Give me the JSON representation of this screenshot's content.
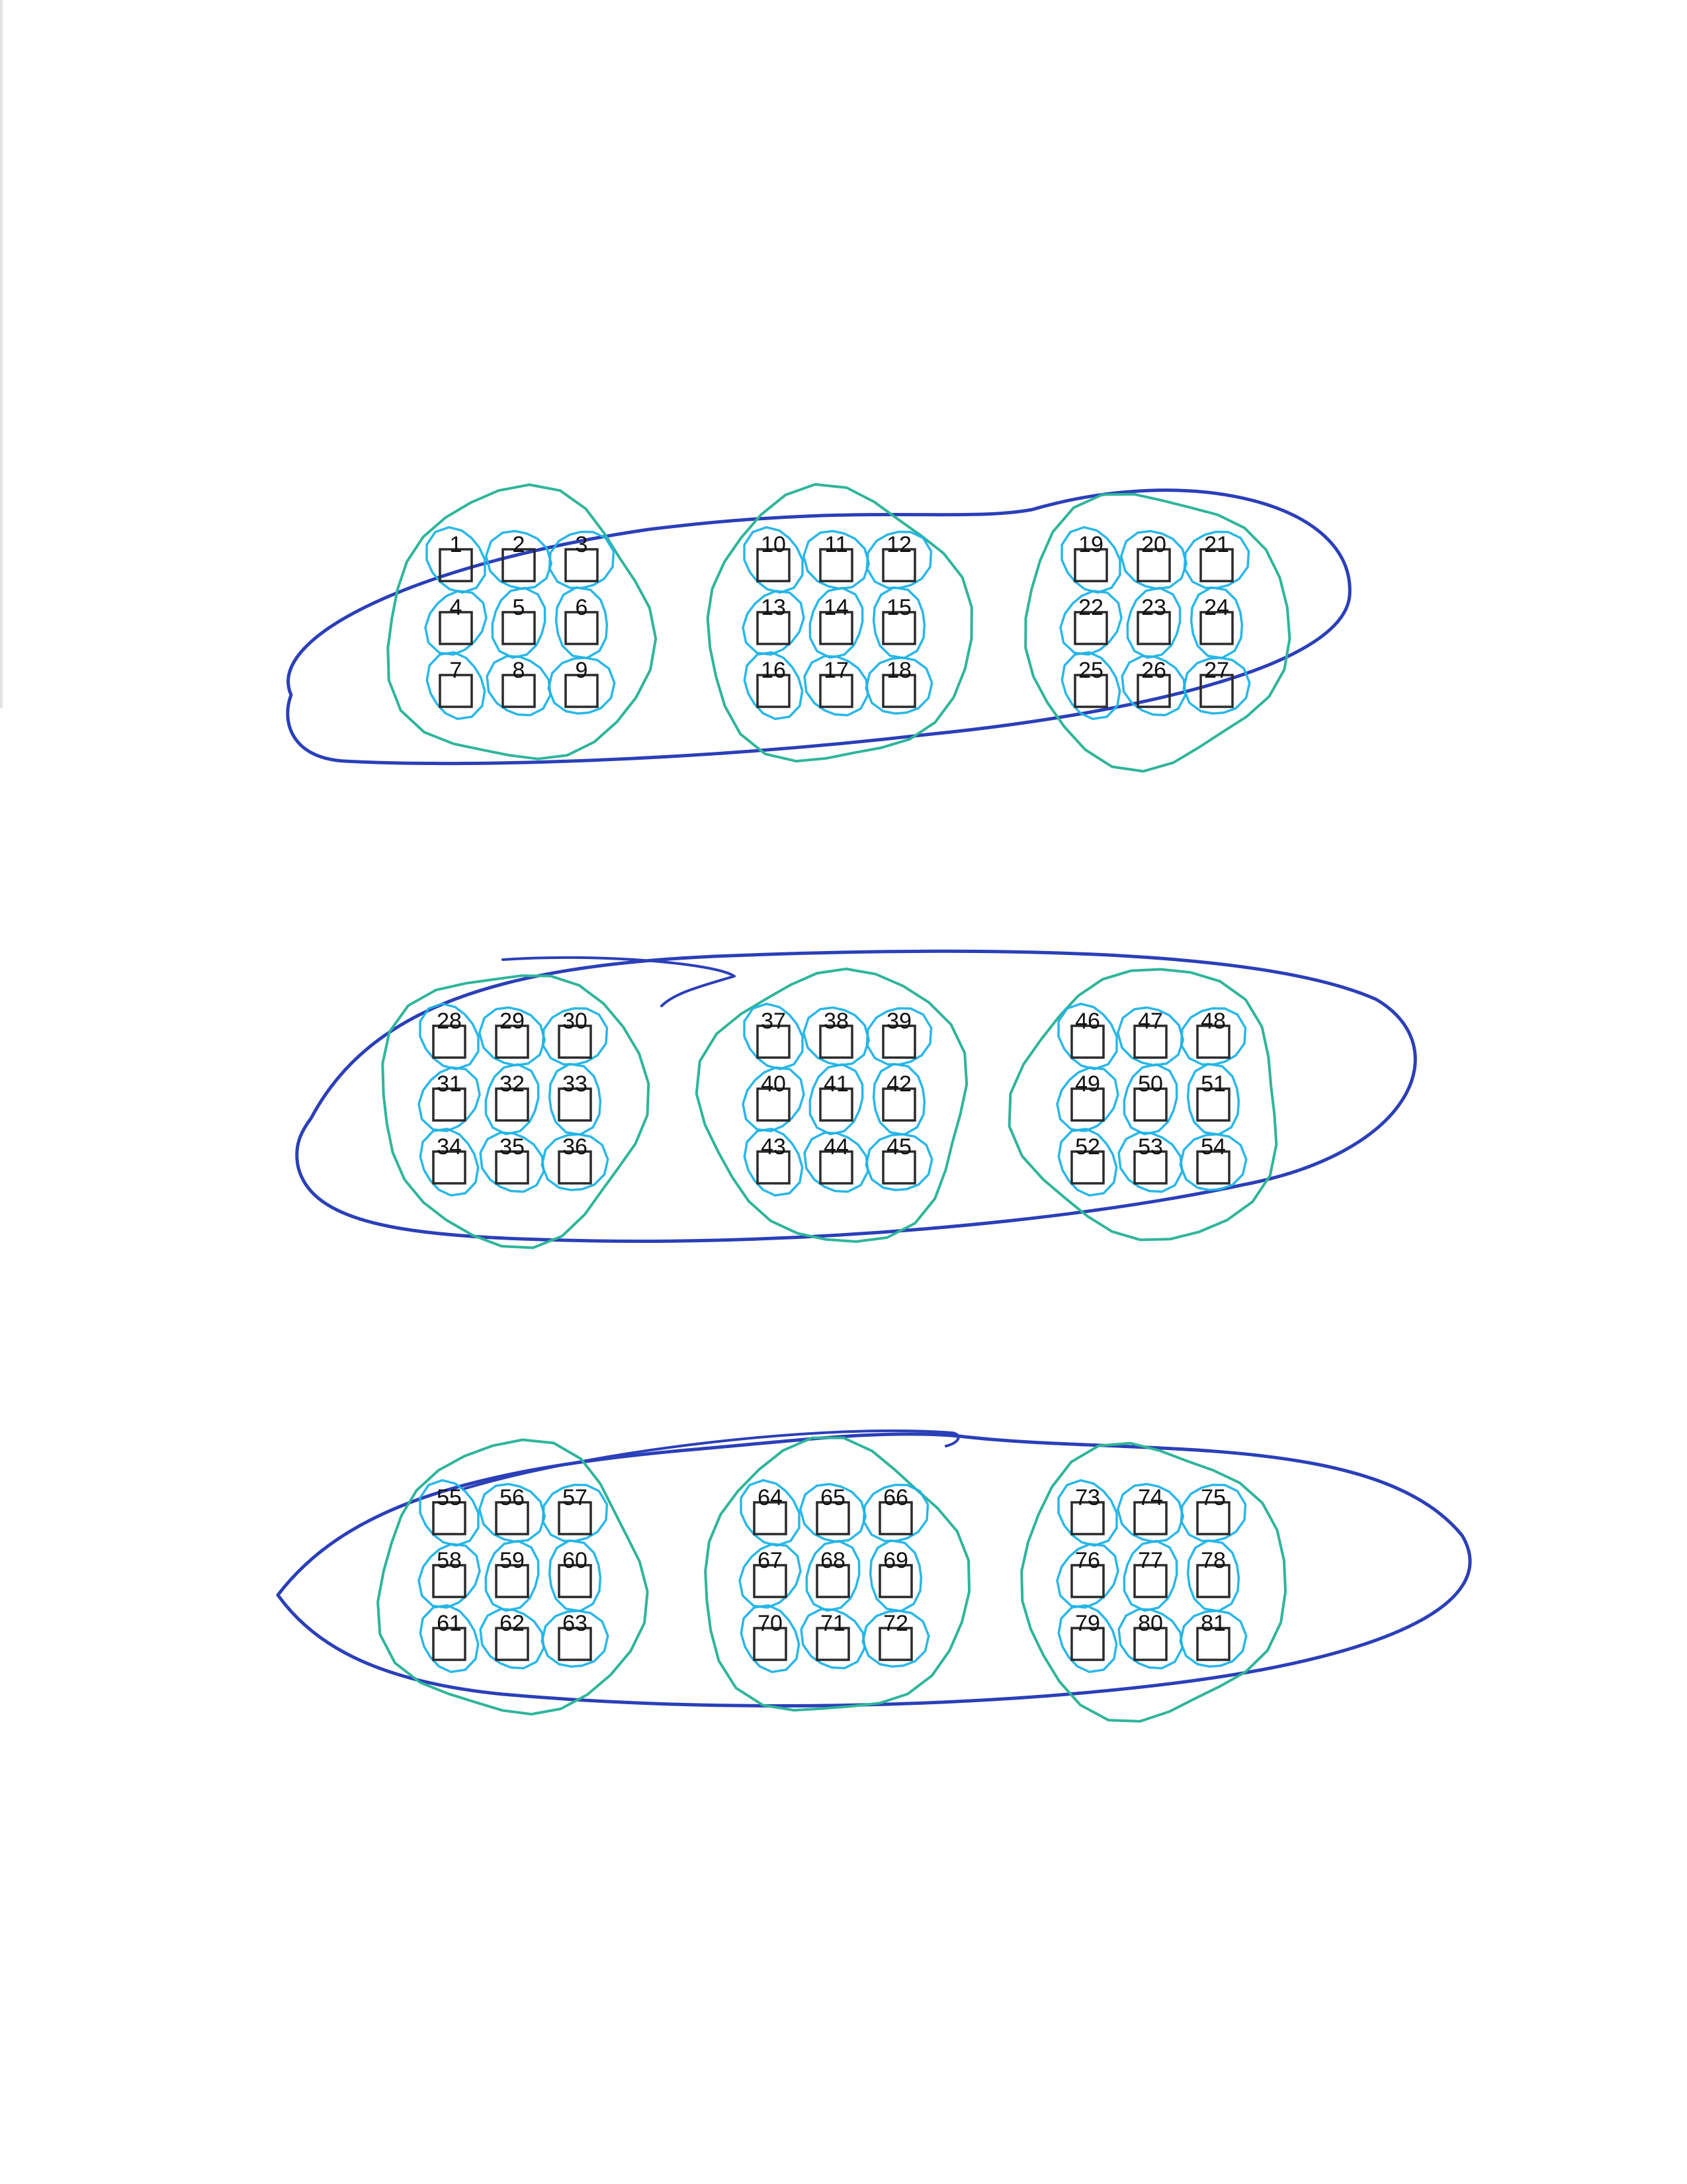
{
  "worksheet": {
    "groups": [
      {
        "labels": [
          "1",
          "2",
          "3",
          "4",
          "5",
          "6",
          "7",
          "8",
          "9"
        ]
      },
      {
        "labels": [
          "10",
          "11",
          "12",
          "13",
          "14",
          "15",
          "16",
          "17",
          "18"
        ]
      },
      {
        "labels": [
          "19",
          "20",
          "21",
          "22",
          "23",
          "24",
          "25",
          "26",
          "27"
        ]
      },
      {
        "labels": [
          "28",
          "29",
          "30",
          "31",
          "32",
          "33",
          "34",
          "35",
          "36"
        ]
      },
      {
        "labels": [
          "37",
          "38",
          "39",
          "40",
          "41",
          "42",
          "43",
          "44",
          "45"
        ]
      },
      {
        "labels": [
          "46",
          "47",
          "48",
          "49",
          "50",
          "51",
          "52",
          "53",
          "54"
        ]
      },
      {
        "labels": [
          "55",
          "56",
          "57",
          "58",
          "59",
          "60",
          "61",
          "62",
          "63"
        ]
      },
      {
        "labels": [
          "64",
          "65",
          "66",
          "67",
          "68",
          "69",
          "70",
          "71",
          "72"
        ]
      },
      {
        "labels": [
          "73",
          "74",
          "75",
          "76",
          "77",
          "78",
          "79",
          "80",
          "81"
        ]
      }
    ]
  },
  "colors": {
    "row_loop": "#2b3fb8",
    "group_loop": "#2fb59a",
    "box_loop": "#1fb3e6",
    "box_outline": "#2a2a2a",
    "label_text": "#111111"
  }
}
